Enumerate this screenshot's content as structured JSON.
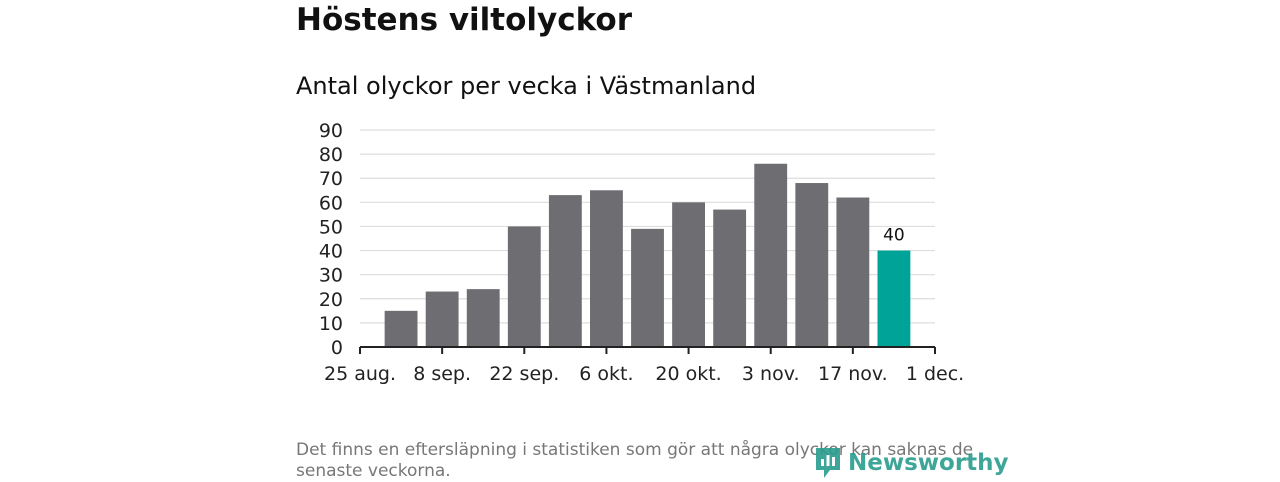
{
  "page": {
    "title": "Höstens viltolyckor",
    "subtitle": "Antal olyckor per vecka i Västmanland",
    "footnote": "Det finns en eftersläpning i statistiken som gör att några olyckor kan saknas de senaste veckorna.",
    "brand": "Newsworthy"
  },
  "colors": {
    "bar": "#6e6d72",
    "highlight": "#00a398",
    "gridline": "#dddddd",
    "axis": "#222222",
    "brand": "#2a9d8f"
  },
  "chart_data": {
    "type": "bar",
    "title": "Höstens viltolyckor",
    "subtitle": "Antal olyckor per vecka i Västmanland",
    "xlabel": "",
    "ylabel": "",
    "ylim": [
      0,
      90
    ],
    "yticks": [
      0,
      10,
      20,
      30,
      40,
      50,
      60,
      70,
      80,
      90
    ],
    "x_ticks": [
      "25 aug.",
      "8 sep.",
      "22 sep.",
      "6 okt.",
      "20 okt.",
      "3 nov.",
      "17 nov.",
      "1 dec."
    ],
    "weeks_per_tick": 2,
    "values": [
      15,
      23,
      24,
      50,
      63,
      65,
      49,
      60,
      57,
      76,
      68,
      62,
      40
    ],
    "highlight_index": 12,
    "data_labels": [
      {
        "index": 12,
        "text": "40"
      }
    ],
    "grid": true,
    "legend": "none"
  }
}
